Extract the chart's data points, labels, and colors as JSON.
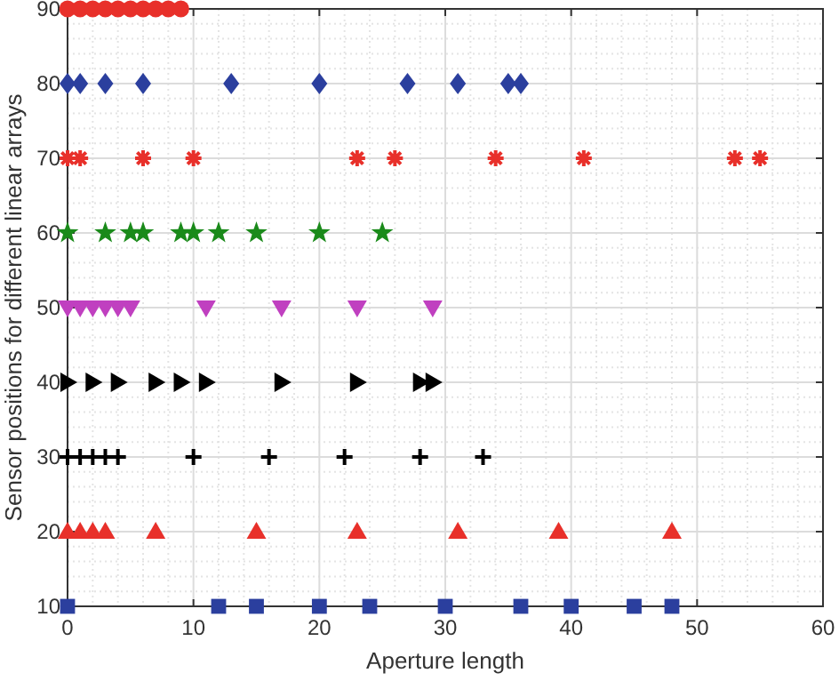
{
  "chart_data": {
    "type": "scatter",
    "xlabel": "Aperture length",
    "ylabel": "Sensor positions for different linear arrays",
    "xlim": [
      0,
      60
    ],
    "ylim": [
      10,
      90
    ],
    "xticks": [
      0,
      10,
      20,
      30,
      40,
      50,
      60
    ],
    "yticks": [
      10,
      20,
      30,
      40,
      50,
      60,
      70,
      80,
      90
    ],
    "grid": true,
    "series": [
      {
        "color": "#2b3f9e",
        "marker": "square",
        "x": [
          0,
          12,
          15,
          20,
          24,
          30,
          36,
          40,
          45,
          48
        ],
        "values": [
          10,
          10,
          10,
          10,
          10,
          10,
          10,
          10,
          10,
          10
        ]
      },
      {
        "color": "#e8302a",
        "marker": "triangle",
        "x": [
          0,
          1,
          2,
          3,
          7,
          15,
          23,
          31,
          39,
          48
        ],
        "values": [
          20,
          20,
          20,
          20,
          20,
          20,
          20,
          20,
          20,
          20
        ]
      },
      {
        "color": "#000000",
        "marker": "cross",
        "x": [
          0,
          1,
          2,
          3,
          4,
          10,
          16,
          22,
          28,
          33
        ],
        "values": [
          30,
          30,
          30,
          30,
          30,
          30,
          30,
          30,
          30,
          30
        ]
      },
      {
        "color": "#000000",
        "marker": "triangle-right",
        "x": [
          0,
          2,
          4,
          7,
          9,
          11,
          17,
          23,
          28,
          29
        ],
        "values": [
          40,
          40,
          40,
          40,
          40,
          40,
          40,
          40,
          40,
          40
        ]
      },
      {
        "color": "#c040c0",
        "marker": "triangle-down",
        "x": [
          0,
          1,
          2,
          3,
          4,
          5,
          11,
          17,
          23,
          29
        ],
        "values": [
          50,
          50,
          50,
          50,
          50,
          50,
          50,
          50,
          50,
          50
        ]
      },
      {
        "color": "#1a8a1a",
        "marker": "star",
        "x": [
          0,
          3,
          5,
          6,
          9,
          10,
          12,
          15,
          20,
          25
        ],
        "values": [
          60,
          60,
          60,
          60,
          60,
          60,
          60,
          60,
          60,
          60
        ]
      },
      {
        "color": "#e8302a",
        "x": [
          0,
          1,
          6,
          10,
          23,
          26,
          34,
          41,
          53,
          55
        ],
        "values": [
          70,
          70,
          70,
          70,
          70,
          70,
          70,
          70,
          70,
          70
        ]
      },
      {
        "color": "#2b3f9e",
        "marker": "diamond",
        "x": [
          0,
          1,
          3,
          6,
          13,
          20,
          27,
          31,
          35,
          36
        ],
        "values": [
          80,
          80,
          80,
          80,
          80,
          80,
          80,
          80,
          80,
          80
        ]
      },
      {
        "color": "#e8302a",
        "marker": "circle",
        "x": [
          0,
          1,
          2,
          3,
          4,
          5,
          6,
          7,
          8,
          9
        ],
        "values": [
          90,
          90,
          90,
          90,
          90,
          90,
          90,
          90,
          90,
          90
        ]
      }
    ]
  }
}
